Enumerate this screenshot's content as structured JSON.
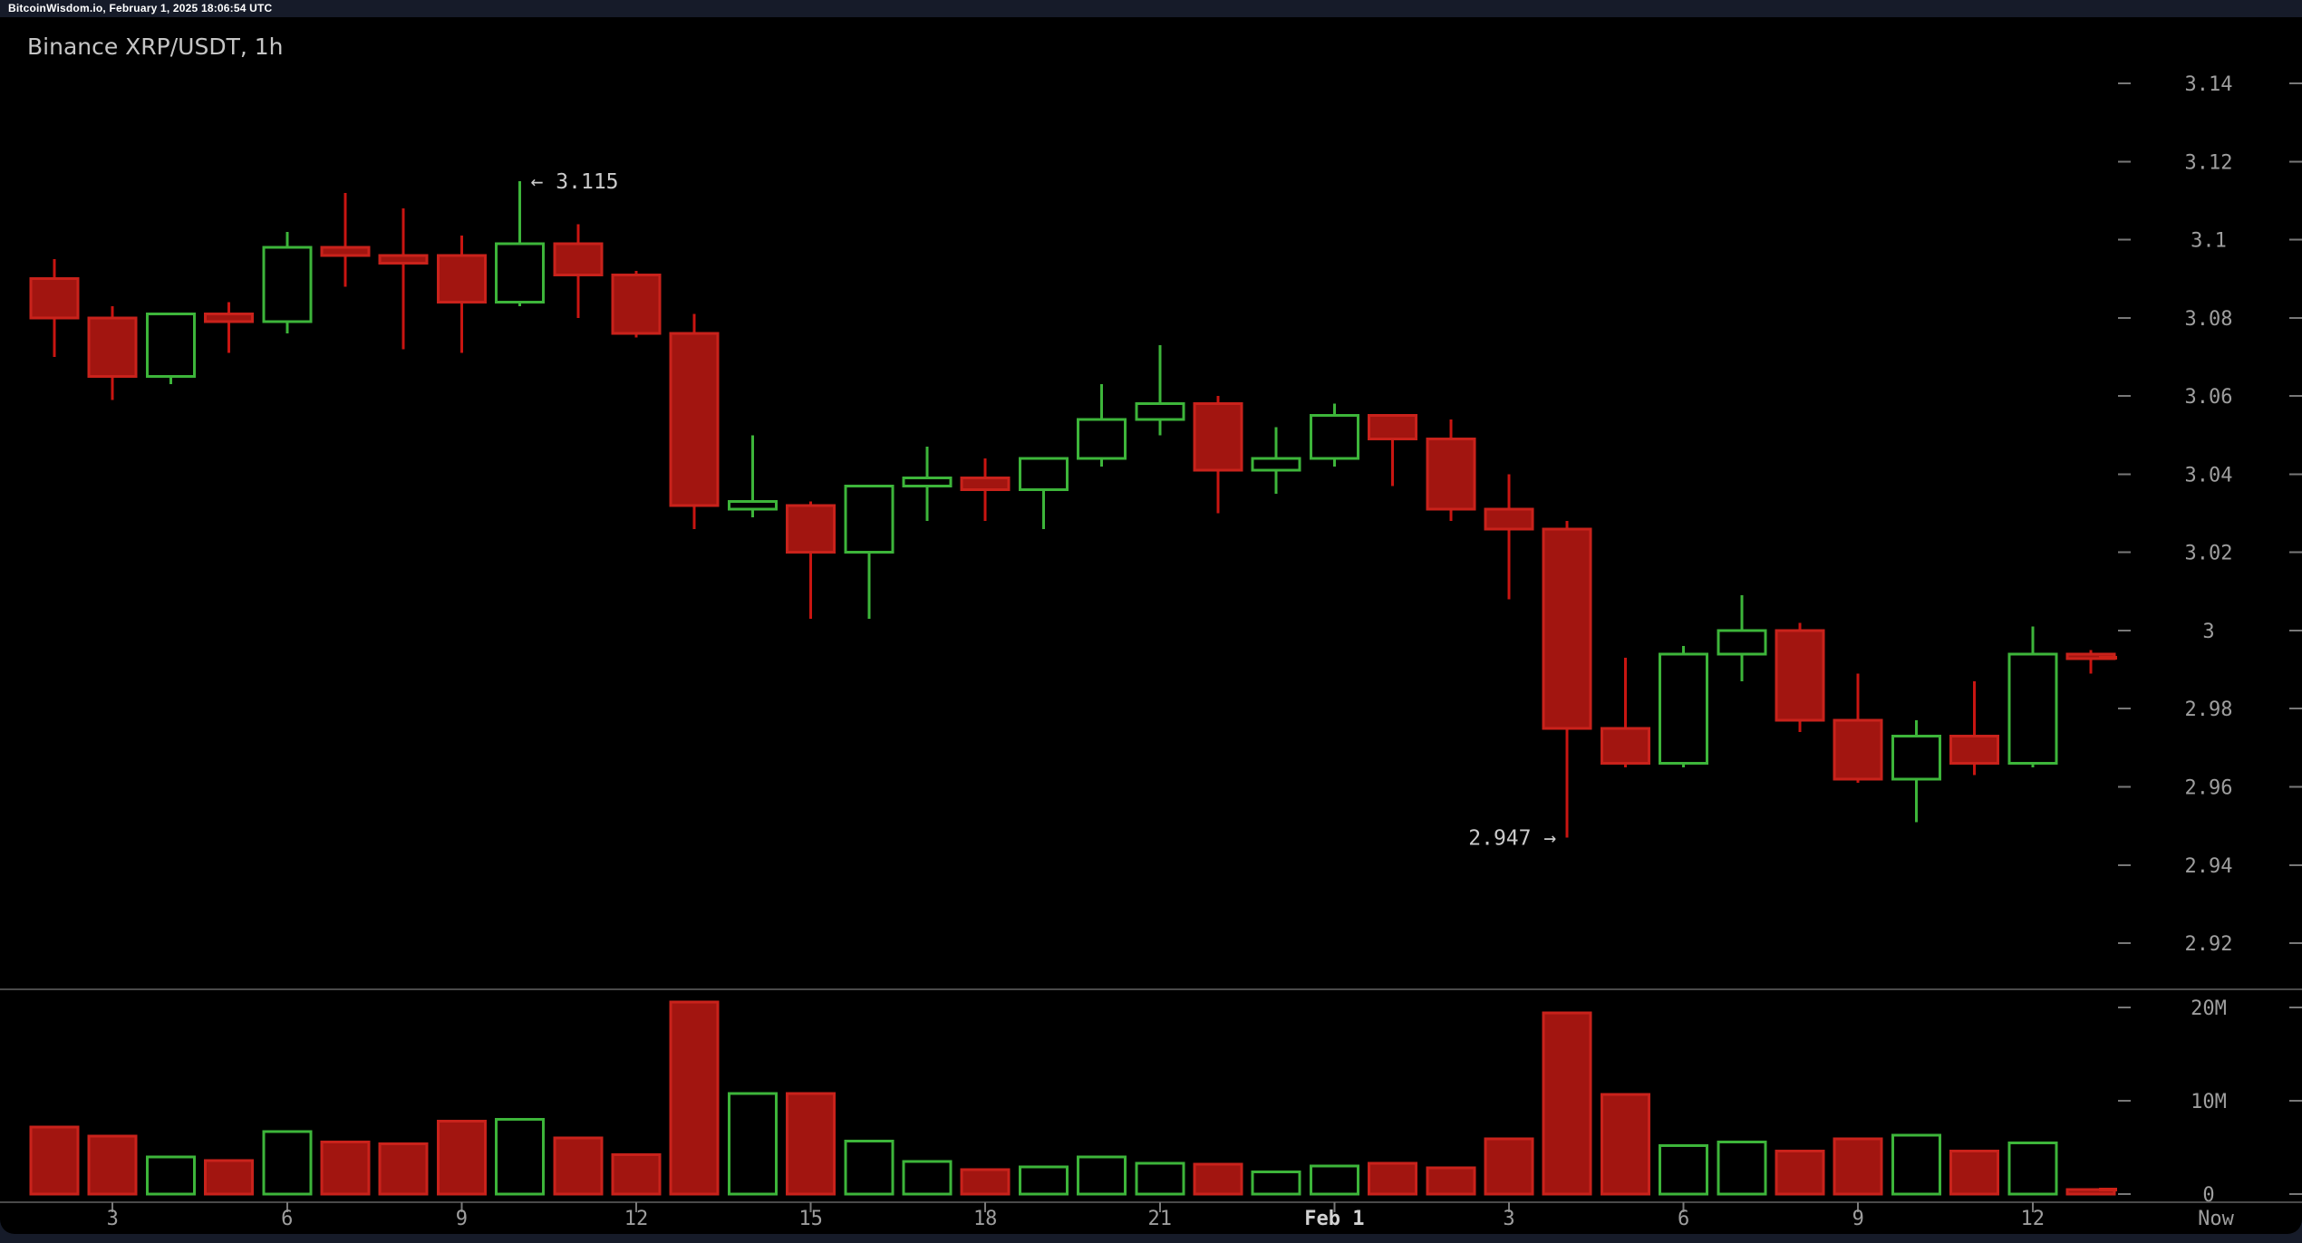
{
  "header": {
    "status_line": "BitcoinWisdom.io, February 1, 2025 18:06:54 UTC",
    "title": "Binance XRP/USDT, 1h"
  },
  "colors": {
    "page_background": "#161b29",
    "chart_background": "#000000",
    "up_stroke": "#3db53a",
    "up_fill": "#000000",
    "down_fill": "#a21510",
    "down_stroke": "#c9221b",
    "down_wick": "#c91511",
    "axis_text": "#9e9e9e",
    "axis_text_bright": "#d2d2d2",
    "annotation_text": "#cbcbcb",
    "tick": "#787878",
    "divider": "#4a4a4a",
    "current_marker": "#cc2218"
  },
  "chart_data": {
    "type": "candlestick_with_volume",
    "title": "Binance XRP/USDT, 1h",
    "price_axis": {
      "labels": [
        "3.14",
        "3.12",
        "3.1",
        "3.08",
        "3.06",
        "3.04",
        "3.02",
        "3",
        "2.98",
        "2.96",
        "2.94",
        "2.92"
      ],
      "values": [
        3.14,
        3.12,
        3.1,
        3.08,
        3.06,
        3.04,
        3.02,
        3.0,
        2.98,
        2.96,
        2.94,
        2.92
      ]
    },
    "volume_axis": {
      "labels": [
        "20M",
        "10M",
        "0"
      ],
      "values_millions": [
        20,
        10,
        0
      ]
    },
    "time_axis": {
      "ticks": [
        {
          "label": "3",
          "candle_index": 1
        },
        {
          "label": "6",
          "candle_index": 4
        },
        {
          "label": "9",
          "candle_index": 7
        },
        {
          "label": "12",
          "candle_index": 10
        },
        {
          "label": "15",
          "candle_index": 13
        },
        {
          "label": "18",
          "candle_index": 16
        },
        {
          "label": "21",
          "candle_index": 19
        },
        {
          "label": "Feb 1",
          "candle_index": 22,
          "emphasis": true
        },
        {
          "label": "3",
          "candle_index": 25
        },
        {
          "label": "6",
          "candle_index": 28
        },
        {
          "label": "9",
          "candle_index": 31
        },
        {
          "label": "12",
          "candle_index": 34
        }
      ],
      "now_label": "Now"
    },
    "columns": [
      "time",
      "open",
      "high",
      "low",
      "close",
      "volume_millions"
    ],
    "candles": [
      [
        "Jan 31 02:00",
        3.09,
        3.095,
        3.07,
        3.08,
        7.2
      ],
      [
        "Jan 31 03:00",
        3.08,
        3.083,
        3.059,
        3.065,
        6.2
      ],
      [
        "Jan 31 04:00",
        3.065,
        3.081,
        3.063,
        3.081,
        4.0
      ],
      [
        "Jan 31 05:00",
        3.081,
        3.084,
        3.071,
        3.079,
        3.6
      ],
      [
        "Jan 31 06:00",
        3.079,
        3.102,
        3.076,
        3.098,
        6.7
      ],
      [
        "Jan 31 07:00",
        3.098,
        3.112,
        3.088,
        3.096,
        5.6
      ],
      [
        "Jan 31 08:00",
        3.096,
        3.108,
        3.072,
        3.094,
        5.4
      ],
      [
        "Jan 31 09:00",
        3.096,
        3.101,
        3.071,
        3.084,
        7.8
      ],
      [
        "Jan 31 10:00",
        3.084,
        3.115,
        3.083,
        3.099,
        8.0
      ],
      [
        "Jan 31 11:00",
        3.099,
        3.104,
        3.08,
        3.091,
        6.0
      ],
      [
        "Jan 31 12:00",
        3.091,
        3.092,
        3.075,
        3.076,
        4.2
      ],
      [
        "Jan 31 13:00",
        3.076,
        3.081,
        3.026,
        3.032,
        20.6
      ],
      [
        "Jan 31 14:00",
        3.031,
        3.05,
        3.029,
        3.033,
        10.8
      ],
      [
        "Jan 31 15:00",
        3.032,
        3.033,
        3.003,
        3.02,
        10.8
      ],
      [
        "Jan 31 16:00",
        3.02,
        3.037,
        3.003,
        3.037,
        5.7
      ],
      [
        "Jan 31 17:00",
        3.037,
        3.047,
        3.028,
        3.039,
        3.5
      ],
      [
        "Jan 31 18:00",
        3.039,
        3.044,
        3.028,
        3.036,
        2.6
      ],
      [
        "Jan 31 19:00",
        3.036,
        3.044,
        3.026,
        3.044,
        2.9
      ],
      [
        "Jan 31 20:00",
        3.044,
        3.063,
        3.042,
        3.054,
        4.0
      ],
      [
        "Jan 31 21:00",
        3.054,
        3.073,
        3.05,
        3.058,
        3.3
      ],
      [
        "Jan 31 22:00",
        3.058,
        3.06,
        3.03,
        3.041,
        3.2
      ],
      [
        "Jan 31 23:00",
        3.041,
        3.052,
        3.035,
        3.044,
        2.4
      ],
      [
        "Feb 1 00:00",
        3.044,
        3.058,
        3.042,
        3.055,
        3.0
      ],
      [
        "Feb 1 01:00",
        3.055,
        3.055,
        3.037,
        3.049,
        3.3
      ],
      [
        "Feb 1 02:00",
        3.049,
        3.054,
        3.028,
        3.031,
        2.8
      ],
      [
        "Feb 1 03:00",
        3.031,
        3.04,
        3.008,
        3.026,
        5.9
      ],
      [
        "Feb 1 04:00",
        3.026,
        3.028,
        2.947,
        2.975,
        19.4
      ],
      [
        "Feb 1 05:00",
        2.975,
        2.993,
        2.965,
        2.966,
        10.7
      ],
      [
        "Feb 1 06:00",
        2.966,
        2.996,
        2.965,
        2.994,
        5.2
      ],
      [
        "Feb 1 07:00",
        2.994,
        3.009,
        2.987,
        3.0,
        5.6
      ],
      [
        "Feb 1 08:00",
        3.0,
        3.002,
        2.974,
        2.977,
        4.6
      ],
      [
        "Feb 1 09:00",
        2.977,
        2.989,
        2.961,
        2.962,
        5.9
      ],
      [
        "Feb 1 10:00",
        2.962,
        2.977,
        2.951,
        2.973,
        6.3
      ],
      [
        "Feb 1 11:00",
        2.973,
        2.987,
        2.963,
        2.966,
        4.6
      ],
      [
        "Feb 1 12:00",
        2.966,
        3.001,
        2.965,
        2.994,
        5.5
      ],
      [
        "Feb 1 13:00",
        2.994,
        2.995,
        2.989,
        2.993,
        0.5
      ]
    ],
    "annotations": [
      {
        "text": "← 3.115",
        "candle_index": 8,
        "attach": "high",
        "side": "right"
      },
      {
        "text": "2.947 →",
        "candle_index": 26,
        "attach": "low",
        "side": "left"
      }
    ],
    "current_price": 2.993,
    "current_volume_millions": 0.5,
    "layout_hints": {
      "price_range_visible": [
        2.91,
        3.15
      ],
      "volume_range_visible": [
        0,
        22
      ],
      "grid": false,
      "legend": false
    }
  }
}
